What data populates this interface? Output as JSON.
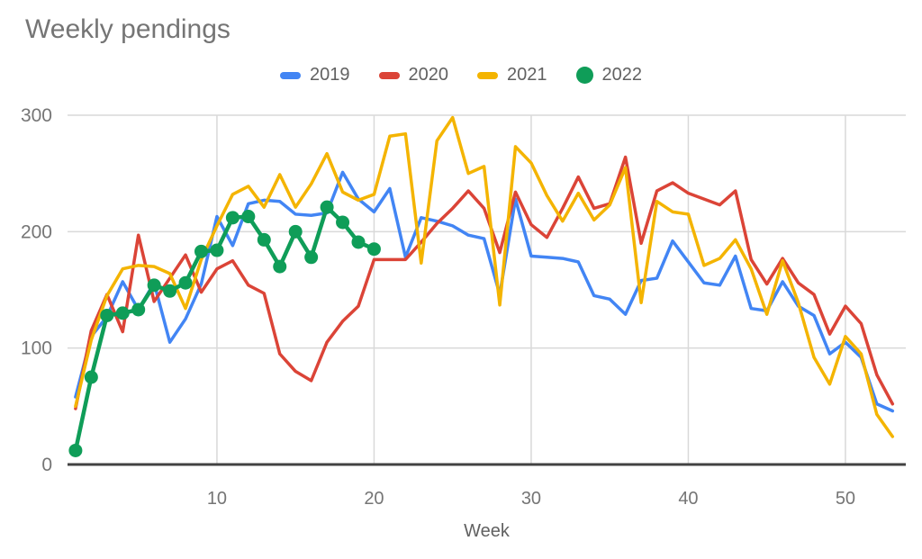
{
  "title": "Weekly pendings",
  "legend": {
    "items": [
      {
        "label": "2019"
      },
      {
        "label": "2020"
      },
      {
        "label": "2021"
      },
      {
        "label": "2022"
      }
    ]
  },
  "axis": {
    "xlabel": "Week"
  },
  "style_colors": {
    "grid": "#d9d9d9",
    "axis_line": "#424242",
    "tick_text": "#757575",
    "axis_title_text": "#616161",
    "title_text": "#757575",
    "background": "#ffffff"
  },
  "chart_data": {
    "type": "line",
    "title": "Weekly pendings",
    "xlabel": "Week",
    "ylabel": "",
    "xlim": [
      1,
      53
    ],
    "ylim": [
      0,
      300
    ],
    "x_ticks": [
      10,
      20,
      30,
      40,
      50
    ],
    "y_ticks": [
      0,
      100,
      200,
      300
    ],
    "grid": true,
    "legend_position": "top",
    "x": [
      1,
      2,
      3,
      4,
      5,
      6,
      7,
      8,
      9,
      10,
      11,
      12,
      13,
      14,
      15,
      16,
      17,
      18,
      19,
      20,
      21,
      22,
      23,
      24,
      25,
      26,
      27,
      28,
      29,
      30,
      31,
      32,
      33,
      34,
      35,
      36,
      37,
      38,
      39,
      40,
      41,
      42,
      43,
      44,
      45,
      46,
      47,
      48,
      49,
      50,
      51,
      52,
      53
    ],
    "series": [
      {
        "name": "2019",
        "color": "#4285F4",
        "marker": "none",
        "values": [
          58,
          110,
          127,
          157,
          133,
          156,
          105,
          125,
          155,
          213,
          188,
          224,
          227,
          226,
          215,
          214,
          216,
          251,
          228,
          217,
          237,
          178,
          212,
          209,
          205,
          197,
          194,
          146,
          228,
          179,
          178,
          177,
          174,
          145,
          142,
          129,
          158,
          160,
          192,
          174,
          156,
          154,
          179,
          134,
          132,
          157,
          136,
          128,
          95,
          105,
          92,
          52,
          46
        ]
      },
      {
        "name": "2020",
        "color": "#DB4437",
        "marker": "none",
        "values": [
          48,
          115,
          146,
          114,
          197,
          140,
          160,
          180,
          148,
          168,
          175,
          154,
          147,
          95,
          80,
          72,
          105,
          123,
          136,
          176,
          176,
          176,
          191,
          207,
          220,
          235,
          220,
          182,
          234,
          206,
          195,
          220,
          247,
          220,
          224,
          264,
          190,
          235,
          242,
          233,
          228,
          223,
          235,
          176,
          155,
          177,
          156,
          146,
          112,
          136,
          121,
          77,
          52
        ]
      },
      {
        "name": "2021",
        "color": "#F4B400",
        "marker": "none",
        "values": [
          50,
          107,
          145,
          168,
          171,
          170,
          164,
          134,
          176,
          205,
          232,
          239,
          221,
          249,
          221,
          241,
          267,
          234,
          227,
          232,
          282,
          284,
          173,
          278,
          298,
          250,
          256,
          137,
          273,
          259,
          231,
          209,
          233,
          210,
          223,
          255,
          139,
          226,
          217,
          215,
          171,
          177,
          193,
          168,
          129,
          175,
          139,
          92,
          69,
          110,
          95,
          43,
          24
        ]
      },
      {
        "name": "2022",
        "color": "#0F9D58",
        "marker": "circle",
        "values": [
          12,
          75,
          128,
          130,
          133,
          154,
          149,
          156,
          183,
          184,
          212,
          213,
          193,
          170,
          200,
          178,
          221,
          208,
          191,
          185
        ]
      }
    ]
  }
}
